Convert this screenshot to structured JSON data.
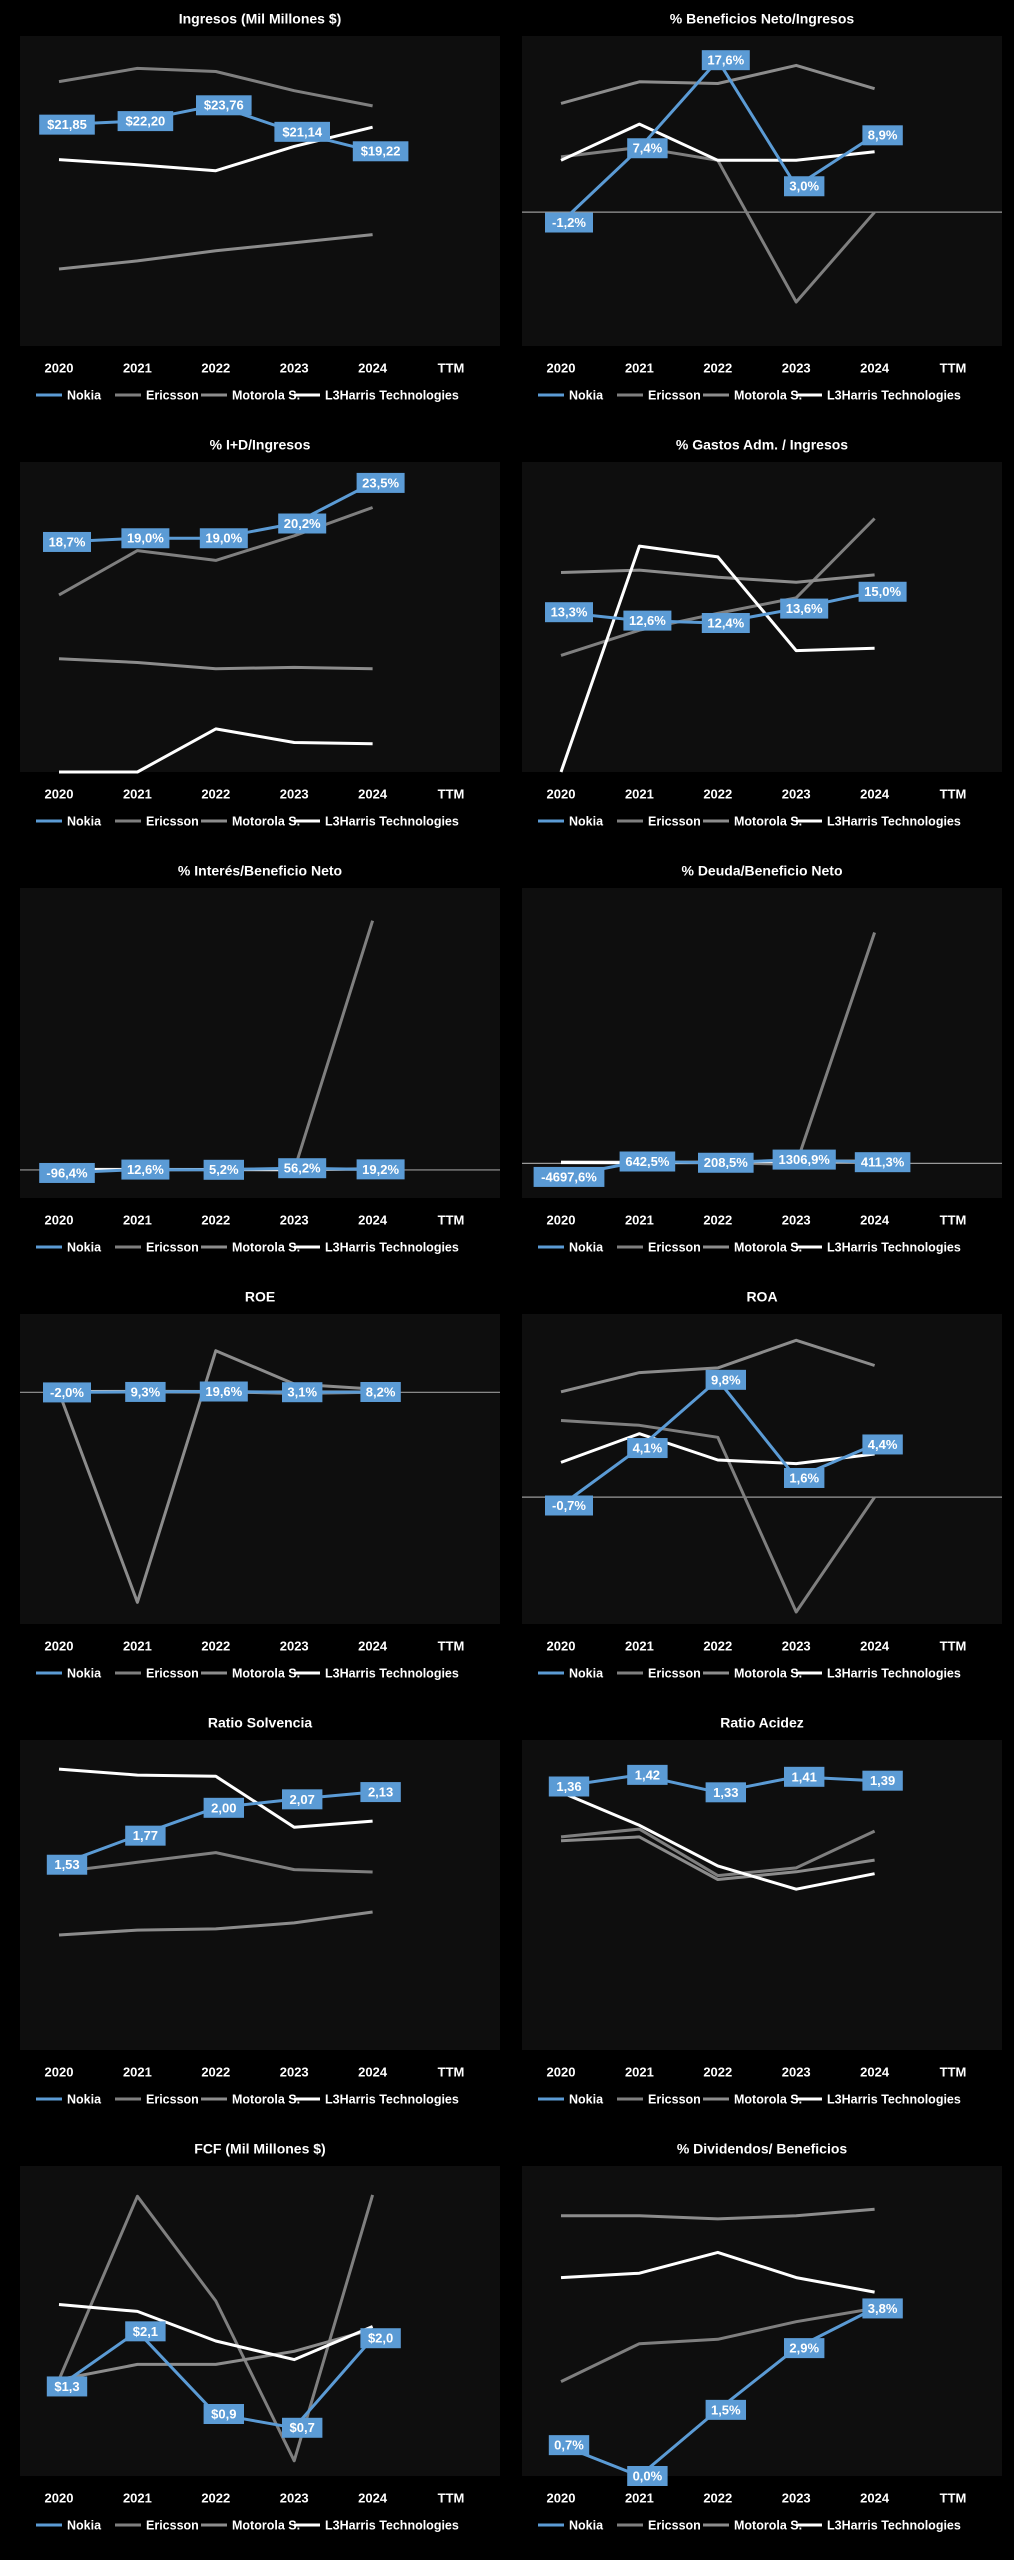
{
  "chart_data": [
    {
      "type": "line",
      "title": "Ingresos (Mil Millones $)",
      "categories": [
        "2020",
        "2021",
        "2022",
        "2023",
        "2024",
        "TTM"
      ],
      "ylim": [
        0,
        30.6
      ],
      "legend": "bottom",
      "series": [
        {
          "name": "Nokia",
          "color": "#5b9bd5",
          "values": [
            21.85,
            22.2,
            23.76,
            21.14,
            19.22,
            null
          ],
          "value_labels": [
            "$21,85",
            "$22,20",
            "$23,76",
            "$21,14",
            "$19,22",
            null
          ]
        },
        {
          "name": "Ericsson",
          "color": "#7f7f7f",
          "values": [
            26.1,
            27.4,
            27.1,
            25.2,
            23.7,
            null
          ]
        },
        {
          "name": "Motorola S.",
          "color": "#8c8c8c",
          "values": [
            7.6,
            8.4,
            9.4,
            10.2,
            11.0,
            null
          ]
        },
        {
          "name": "L3Harris Technologies",
          "color": "#ffffff",
          "values": [
            18.4,
            17.9,
            17.3,
            19.7,
            21.6,
            null
          ]
        }
      ]
    },
    {
      "type": "line",
      "title": "% Beneficios Neto/Ingresos",
      "categories": [
        "2020",
        "2021",
        "2022",
        "2023",
        "2024",
        "TTM"
      ],
      "ylim": [
        -15.5,
        20.4
      ],
      "legend": "bottom",
      "series": [
        {
          "name": "Nokia",
          "color": "#5b9bd5",
          "values": [
            -1.2,
            7.4,
            17.6,
            3.0,
            8.9,
            null
          ],
          "value_labels": [
            "-1,2%",
            "7,4%",
            "17,6%",
            "3,0%",
            "8,9%",
            null
          ]
        },
        {
          "name": "Ericsson",
          "color": "#7f7f7f",
          "values": [
            6.4,
            7.5,
            6.0,
            -10.4,
            0,
            null
          ]
        },
        {
          "name": "Motorola S.",
          "color": "#8c8c8c",
          "values": [
            12.6,
            15.1,
            14.9,
            17.0,
            14.3,
            null
          ]
        },
        {
          "name": "L3Harris Technologies",
          "color": "#ffffff",
          "values": [
            6.0,
            10.2,
            6.0,
            6.0,
            7.0,
            null
          ]
        }
      ]
    },
    {
      "type": "line",
      "title": "% I+D/Ingresos",
      "categories": [
        "2020",
        "2021",
        "2022",
        "2023",
        "2024",
        "TTM"
      ],
      "ylim": [
        0,
        25.2
      ],
      "legend": "bottom",
      "series": [
        {
          "name": "Nokia",
          "color": "#5b9bd5",
          "values": [
            18.7,
            19.0,
            19.0,
            20.2,
            23.5,
            null
          ],
          "value_labels": [
            "18,7%",
            "19,0%",
            "19,0%",
            "20,2%",
            "23,5%",
            null
          ]
        },
        {
          "name": "Ericsson",
          "color": "#7f7f7f",
          "values": [
            14.4,
            18.0,
            17.2,
            19.2,
            21.5,
            null
          ]
        },
        {
          "name": "Motorola S.",
          "color": "#8c8c8c",
          "values": [
            9.2,
            8.9,
            8.4,
            8.5,
            8.4,
            null
          ]
        },
        {
          "name": "L3Harris Technologies",
          "color": "#ffffff",
          "values": [
            0,
            0,
            3.5,
            2.4,
            2.3,
            null
          ]
        }
      ]
    },
    {
      "type": "line",
      "title": "% Gastos Adm. / Ingresos",
      "categories": [
        "2020",
        "2021",
        "2022",
        "2023",
        "2024",
        "TTM"
      ],
      "ylim": [
        0,
        25.8
      ],
      "legend": "bottom",
      "series": [
        {
          "name": "Nokia",
          "color": "#5b9bd5",
          "values": [
            13.3,
            12.6,
            12.4,
            13.6,
            15.0,
            null
          ],
          "value_labels": [
            "13,3%",
            "12,6%",
            "12,4%",
            "13,6%",
            "15,0%",
            null
          ]
        },
        {
          "name": "Ericsson",
          "color": "#7f7f7f",
          "values": [
            9.7,
            11.8,
            13.2,
            14.5,
            21.1,
            null
          ]
        },
        {
          "name": "Motorola S.",
          "color": "#8c8c8c",
          "values": [
            16.6,
            16.8,
            16.2,
            15.8,
            16.4,
            null
          ]
        },
        {
          "name": "L3Harris Technologies",
          "color": "#ffffff",
          "values": [
            0,
            18.8,
            17.9,
            10.1,
            10.3,
            null
          ]
        }
      ]
    },
    {
      "type": "line",
      "title": "% Interés/Beneficio Neto",
      "categories": [
        "2020",
        "2021",
        "2022",
        "2023",
        "2024",
        "TTM"
      ],
      "ylim": [
        -900,
        9050
      ],
      "legend": "bottom",
      "series": [
        {
          "name": "Nokia",
          "color": "#5b9bd5",
          "values": [
            -96.4,
            12.6,
            5.2,
            56.2,
            19.2,
            null
          ],
          "value_labels": [
            "-96,4%",
            "12,6%",
            "5,2%",
            "56,2%",
            "19,2%",
            null
          ]
        },
        {
          "name": "Ericsson",
          "color": "#7f7f7f",
          "values": [
            5,
            5,
            8,
            -4,
            8000,
            null
          ]
        },
        {
          "name": "Motorola S.",
          "color": "#8c8c8c",
          "values": [
            20,
            18,
            15,
            22,
            20,
            null
          ]
        },
        {
          "name": "L3Harris Technologies",
          "color": "#ffffff",
          "values": [
            15,
            12,
            14,
            25,
            30,
            null
          ]
        }
      ]
    },
    {
      "type": "line",
      "title": "% Deuda/Beneficio Neto",
      "categories": [
        "2020",
        "2021",
        "2022",
        "2023",
        "2024",
        "TTM"
      ],
      "ylim": [
        -12000,
        95400
      ],
      "legend": "bottom",
      "series": [
        {
          "name": "Nokia",
          "color": "#5b9bd5",
          "values": [
            -4697.6,
            642.5,
            208.5,
            1306.9,
            411.3,
            null
          ],
          "value_labels": [
            "-4697,6%",
            "642,5%",
            "208,5%",
            "1306,9%",
            "411,3%",
            null
          ]
        },
        {
          "name": "Ericsson",
          "color": "#7f7f7f",
          "values": [
            200,
            150,
            200,
            -300,
            80000,
            null
          ]
        },
        {
          "name": "Motorola S.",
          "color": "#8c8c8c",
          "values": [
            500,
            400,
            300,
            350,
            400,
            null
          ]
        },
        {
          "name": "L3Harris Technologies",
          "color": "#ffffff",
          "values": [
            300,
            250,
            450,
            800,
            700,
            null
          ]
        }
      ]
    },
    {
      "type": "line",
      "title": "ROE",
      "categories": [
        "2020",
        "2021",
        "2022",
        "2023",
        "2024",
        "TTM"
      ],
      "ylim": [
        -5560,
        1880
      ],
      "legend": "bottom",
      "series": [
        {
          "name": "Nokia",
          "color": "#5b9bd5",
          "values": [
            -2.0,
            9.3,
            19.6,
            3.1,
            8.2,
            null
          ],
          "value_labels": [
            "-2,0%",
            "9,3%",
            "19,6%",
            "3,1%",
            "8,2%",
            null
          ]
        },
        {
          "name": "Ericsson",
          "color": "#7f7f7f",
          "values": [
            20,
            25,
            20,
            -30,
            0,
            null
          ]
        },
        {
          "name": "Motorola S.",
          "color": "#8c8c8c",
          "values": [
            0,
            -5040,
            1000,
            200,
            80,
            null
          ]
        },
        {
          "name": "L3Harris Technologies",
          "color": "#ffffff",
          "values": [
            10,
            15,
            10,
            8,
            8,
            null
          ]
        }
      ]
    },
    {
      "type": "line",
      "title": "ROA",
      "categories": [
        "2020",
        "2021",
        "2022",
        "2023",
        "2024",
        "TTM"
      ],
      "ylim": [
        -10.6,
        15.3
      ],
      "legend": "bottom",
      "series": [
        {
          "name": "Nokia",
          "color": "#5b9bd5",
          "values": [
            -0.7,
            4.1,
            9.8,
            1.6,
            4.4,
            null
          ],
          "value_labels": [
            "-0,7%",
            "4,1%",
            "9,8%",
            "1,6%",
            "4,4%",
            null
          ]
        },
        {
          "name": "Ericsson",
          "color": "#7f7f7f",
          "values": [
            6.4,
            6.0,
            5.0,
            -9.6,
            0,
            null
          ]
        },
        {
          "name": "Motorola S.",
          "color": "#8c8c8c",
          "values": [
            8.8,
            10.4,
            10.8,
            13.1,
            11.0,
            null
          ]
        },
        {
          "name": "L3Harris Technologies",
          "color": "#ffffff",
          "values": [
            2.9,
            5.3,
            3.1,
            2.8,
            3.6,
            null
          ]
        }
      ]
    },
    {
      "type": "line",
      "title": "Ratio Solvencia",
      "categories": [
        "2020",
        "2021",
        "2022",
        "2023",
        "2024",
        "TTM"
      ],
      "ylim": [
        0,
        2.56
      ],
      "legend": "bottom",
      "series": [
        {
          "name": "Nokia",
          "color": "#5b9bd5",
          "values": [
            1.53,
            1.77,
            2.0,
            2.07,
            2.13,
            null
          ],
          "value_labels": [
            "1,53",
            "1,77",
            "2,00",
            "2,07",
            "2,13",
            null
          ]
        },
        {
          "name": "Ericsson",
          "color": "#7f7f7f",
          "values": [
            1.47,
            1.55,
            1.63,
            1.49,
            1.47,
            null
          ]
        },
        {
          "name": "Motorola S.",
          "color": "#8c8c8c",
          "values": [
            0.95,
            0.99,
            1.0,
            1.05,
            1.14,
            null
          ]
        },
        {
          "name": "L3Harris Technologies",
          "color": "#ffffff",
          "values": [
            2.32,
            2.27,
            2.26,
            1.84,
            1.89,
            null
          ]
        }
      ]
    },
    {
      "type": "line",
      "title": "Ratio Acidez",
      "categories": [
        "2020",
        "2021",
        "2022",
        "2023",
        "2024",
        "TTM"
      ],
      "ylim": [
        0,
        1.6
      ],
      "legend": "bottom",
      "series": [
        {
          "name": "Nokia",
          "color": "#5b9bd5",
          "values": [
            1.36,
            1.42,
            1.33,
            1.41,
            1.39,
            null
          ],
          "value_labels": [
            "1,36",
            "1,42",
            "1,33",
            "1,41",
            "1,39",
            null
          ]
        },
        {
          "name": "Ericsson",
          "color": "#7f7f7f",
          "values": [
            1.1,
            1.14,
            0.9,
            0.94,
            1.13,
            null
          ]
        },
        {
          "name": "Motorola S.",
          "color": "#8c8c8c",
          "values": [
            1.08,
            1.1,
            0.88,
            0.92,
            0.98,
            null
          ]
        },
        {
          "name": "L3Harris Technologies",
          "color": "#ffffff",
          "values": [
            1.33,
            1.16,
            0.95,
            0.83,
            0.91,
            null
          ]
        }
      ]
    },
    {
      "type": "line",
      "title": "FCF (Mil Millones $)",
      "categories": [
        "2020",
        "2021",
        "2022",
        "2023",
        "2024",
        "TTM"
      ],
      "ylim": [
        0,
        4.5
      ],
      "legend": "bottom",
      "series": [
        {
          "name": "Nokia",
          "color": "#5b9bd5",
          "values": [
            1.3,
            2.1,
            0.9,
            0.7,
            2.0,
            null
          ],
          "value_labels": [
            "$1,3",
            "$2,1",
            "$0,9",
            "$0,7",
            "$2,0",
            null
          ]
        },
        {
          "name": "Ericsson",
          "color": "#7f7f7f",
          "values": [
            1.4,
            4.06,
            2.54,
            0.22,
            4.08,
            null
          ]
        },
        {
          "name": "Motorola S.",
          "color": "#8c8c8c",
          "values": [
            1.4,
            1.62,
            1.62,
            1.81,
            2.13,
            null
          ]
        },
        {
          "name": "L3Harris Technologies",
          "color": "#ffffff",
          "values": [
            2.49,
            2.39,
            1.96,
            1.69,
            2.17,
            null
          ]
        }
      ]
    },
    {
      "type": "line",
      "title": "% Dividendos/ Beneficios",
      "categories": [
        "2020",
        "2021",
        "2022",
        "2023",
        "2024",
        "TTM"
      ],
      "ylim": [
        0,
        7.03
      ],
      "legend": "bottom",
      "series": [
        {
          "name": "Nokia",
          "color": "#5b9bd5",
          "values": [
            0.7,
            0.0,
            1.5,
            2.9,
            3.8,
            null
          ],
          "value_labels": [
            "0,7%",
            "0,0%",
            "1,5%",
            "2,9%",
            "3,8%",
            null
          ]
        },
        {
          "name": "Ericsson",
          "color": "#7f7f7f",
          "values": [
            2.14,
            3.0,
            3.1,
            3.5,
            3.8,
            null
          ]
        },
        {
          "name": "Motorola S.",
          "color": "#8c8c8c",
          "values": [
            5.9,
            5.9,
            5.83,
            5.9,
            6.05,
            null
          ]
        },
        {
          "name": "L3Harris Technologies",
          "color": "#ffffff",
          "values": [
            4.5,
            4.6,
            5.07,
            4.5,
            4.17,
            null
          ]
        }
      ]
    }
  ]
}
